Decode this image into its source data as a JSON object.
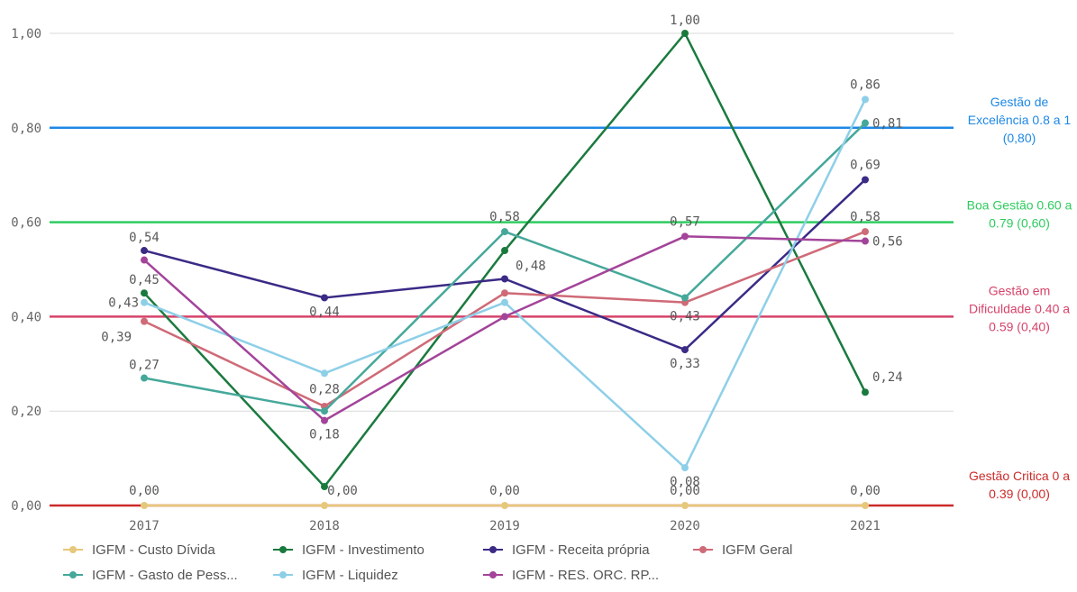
{
  "chart_data": {
    "type": "line",
    "categories": [
      "2017",
      "2018",
      "2019",
      "2020",
      "2021"
    ],
    "ylim": [
      0,
      1
    ],
    "yticks": [
      "0,00",
      "0,20",
      "0,40",
      "0,60",
      "0,80",
      "1,00"
    ],
    "ytick_values": [
      0,
      0.2,
      0.4,
      0.6,
      0.8,
      1.0
    ],
    "grid": true,
    "legend_position": "bottom",
    "series": [
      {
        "name": "IGFM - Custo Dívida",
        "color": "#e6c87a",
        "values": [
          0,
          0,
          0,
          0,
          0
        ],
        "labels": [
          "0,00",
          "0,00",
          "0,00",
          "0,00",
          "0,00"
        ]
      },
      {
        "name": "IGFM - Investimento",
        "color": "#1a7a3e",
        "values": [
          0.45,
          0.04,
          0.54,
          1.0,
          0.24
        ],
        "labels": [
          "0,45",
          "",
          "",
          "1,00",
          "0,24"
        ]
      },
      {
        "name": "IGFM - Receita própria",
        "color": "#3b2a86",
        "values": [
          0.54,
          0.44,
          0.48,
          0.33,
          0.69
        ],
        "labels": [
          "0,54",
          "0,44",
          "0,48",
          "0,33",
          "0,69"
        ]
      },
      {
        "name": "IGFM Geral",
        "color": "#cf6a77",
        "values": [
          0.39,
          0.21,
          0.45,
          0.43,
          0.58
        ],
        "labels": [
          "0,39",
          "",
          "",
          "0,43",
          "0,58"
        ]
      },
      {
        "name": "IGFM - Gasto de Pess...",
        "color": "#45a89a",
        "values": [
          0.27,
          0.2,
          0.58,
          0.44,
          0.81
        ],
        "labels": [
          "0,27",
          "",
          "0,58",
          "",
          "0,81"
        ]
      },
      {
        "name": "IGFM - Liquidez",
        "color": "#8ecfe8",
        "values": [
          0.43,
          0.28,
          0.43,
          0.08,
          0.86
        ],
        "labels": [
          "0,43",
          "0,28",
          "",
          "0,08",
          "0,86"
        ]
      },
      {
        "name": "IGFM - RES. ORC. RP...",
        "color": "#a3449a",
        "values": [
          0.52,
          0.18,
          0.4,
          0.57,
          0.56
        ],
        "labels": [
          "",
          "0,18",
          "",
          "0,57",
          "0,56"
        ]
      }
    ],
    "reference_lines": [
      {
        "value": 0.8,
        "color": "#1e88e5",
        "lines": [
          "Gestão de",
          "Excelência 0.8 a 1",
          "(0,80)"
        ]
      },
      {
        "value": 0.6,
        "color": "#2ecc5f",
        "lines": [
          "Boa Gestão 0.60 a",
          "0.79 (0,60)"
        ]
      },
      {
        "value": 0.4,
        "color": "#d6436a",
        "lines": [
          "Gestão em",
          "Dificuldade 0.40 a",
          "0.59 (0,40)"
        ]
      },
      {
        "value": 0.0,
        "color": "#cc2a2a",
        "lines": [
          "Gestão Critica 0 a",
          "0.39 (0,00)"
        ]
      }
    ]
  }
}
